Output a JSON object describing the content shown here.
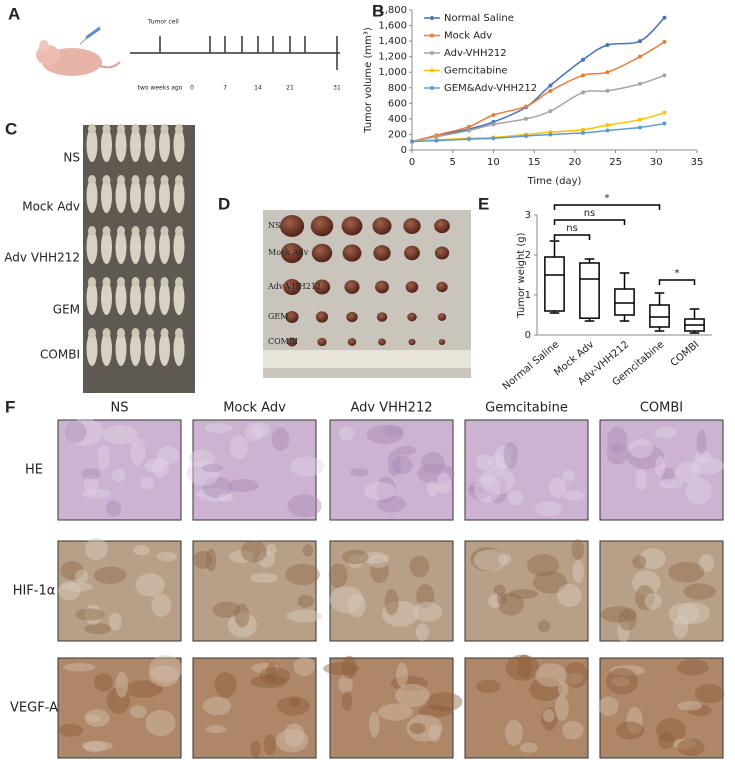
{
  "panel_labels": [
    "A",
    "B",
    "C",
    "D",
    "E",
    "F"
  ],
  "timeline": {
    "event": "Tumor cell",
    "start": "two weeks ago",
    "days": [
      0,
      7,
      14,
      21,
      31
    ]
  },
  "chart_data": [
    {
      "type": "line",
      "x_label": "Time (day)",
      "y_label": "Tumor volume (mm³)",
      "x": [
        0,
        3,
        7,
        10,
        14,
        17,
        21,
        24,
        28,
        31
      ],
      "series": [
        {
          "name": "Normal Saline",
          "color": "#4472c4",
          "values": [
            110,
            180,
            270,
            360,
            550,
            830,
            1160,
            1350,
            1400,
            1700
          ]
        },
        {
          "name": "Mock Adv",
          "color": "#ed7d31",
          "values": [
            110,
            190,
            300,
            450,
            560,
            760,
            960,
            1000,
            1200,
            1390
          ]
        },
        {
          "name": "Adv-VHH212",
          "color": "#a5a5a5",
          "values": [
            110,
            170,
            250,
            330,
            400,
            500,
            740,
            760,
            850,
            960
          ]
        },
        {
          "name": "Gemcitabine",
          "color": "#ffc000",
          "values": [
            110,
            130,
            150,
            160,
            200,
            230,
            260,
            320,
            390,
            480
          ]
        },
        {
          "name": "GEM&Adv-VHH212",
          "color": "#5b9bd5",
          "values": [
            110,
            120,
            140,
            150,
            180,
            200,
            220,
            250,
            290,
            340
          ]
        }
      ],
      "xlim": [
        0,
        35
      ],
      "xticks": [
        0,
        5,
        10,
        15,
        20,
        25,
        30,
        35
      ],
      "ylim": [
        0,
        1800
      ],
      "yticks": [
        0,
        200,
        400,
        600,
        800,
        {
          "value": 1000,
          "label": "1,000"
        },
        {
          "value": 1200,
          "label": "1,200"
        },
        {
          "value": 1400,
          "label": "1,400"
        },
        {
          "value": 1600,
          "label": "1,600"
        },
        {
          "value": 1800,
          "label": "1,800"
        }
      ],
      "legend": "top-left"
    },
    {
      "type": "box",
      "y_label": "Tumor weight (g)",
      "categories": [
        "Normal Saline",
        "Mock Adv",
        "Adv-VHH212",
        "Gemcitabine",
        "COMBI"
      ],
      "stats": [
        {
          "min": 0.55,
          "q1": 0.6,
          "median": 1.5,
          "q3": 1.95,
          "max": 2.35
        },
        {
          "min": 0.35,
          "q1": 0.42,
          "median": 1.4,
          "q3": 1.8,
          "max": 1.9
        },
        {
          "min": 0.35,
          "q1": 0.5,
          "median": 0.8,
          "q3": 1.15,
          "max": 1.55
        },
        {
          "min": 0.1,
          "q1": 0.2,
          "median": 0.45,
          "q3": 0.75,
          "max": 1.05
        },
        {
          "min": 0.05,
          "q1": 0.1,
          "median": 0.25,
          "q3": 0.4,
          "max": 0.65
        }
      ],
      "color": "#000000",
      "ylim": [
        0,
        3
      ],
      "yticks": [
        0,
        1,
        2,
        3
      ],
      "annotations": [
        "*",
        "ns",
        "ns",
        "*"
      ]
    }
  ],
  "photo_c": {
    "labels": [
      "NS",
      "Mock Adv",
      "Adv VHH212",
      "GEM",
      "COMBI"
    ]
  },
  "photo_d": {
    "labels": [
      "NS",
      "Mock Adv",
      "Adv VHH212",
      "GEM",
      "COMBI"
    ]
  },
  "histology": {
    "columns": [
      "NS",
      "Mock Adv",
      "Adv VHH212",
      "Gemcitabine",
      "COMBI"
    ],
    "rows": [
      "HE",
      "HIF-1α",
      "VEGF-A"
    ]
  }
}
